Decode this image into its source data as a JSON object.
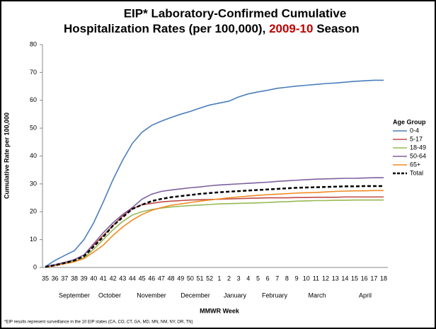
{
  "chart_data": {
    "type": "line",
    "title": {
      "line1": "EIP* Laboratory-Confirmed Cumulative",
      "line2": "Hospitalization Rates (per 100,000),",
      "season": "2009-10",
      "suffix": "Season"
    },
    "x_label": "MMWR Week",
    "y_label": "Cumulative Rate per 100,000",
    "legend_title": "Age Group",
    "legend": "right",
    "grid": false,
    "footnote": "*EIP results represent surveillance in the 10 EIP states (CA, CO, CT, GA, MD, MN, NM, NY, OR, TN)",
    "months": [
      "September",
      "October",
      "November",
      "December",
      "January",
      "February",
      "March",
      "April"
    ],
    "categories": [
      "35",
      "36",
      "37",
      "38",
      "39",
      "40",
      "41",
      "42",
      "43",
      "44",
      "45",
      "46",
      "47",
      "48",
      "49",
      "50",
      "51",
      "52",
      "1",
      "2",
      "3",
      "4",
      "5",
      "6",
      "7",
      "8",
      "9",
      "10",
      "11",
      "12",
      "13",
      "14",
      "15",
      "16",
      "17",
      "18"
    ],
    "ylim": [
      0,
      80
    ],
    "yticks": [
      0,
      10,
      20,
      30,
      40,
      50,
      60,
      70,
      80
    ],
    "series": [
      {
        "name": "0-4",
        "color": "#4a7ebb",
        "values": [
          0.3,
          2.5,
          4.3,
          6,
          10,
          16,
          23.5,
          31.5,
          38.5,
          44.5,
          48.5,
          51,
          52.5,
          53.8,
          55,
          56,
          57.2,
          58.3,
          59,
          59.7,
          61.2,
          62.3,
          63,
          63.6,
          64.3,
          64.7,
          65.1,
          65.4,
          65.7,
          66,
          66.2,
          66.5,
          66.8,
          67,
          67.2,
          67.2
        ]
      },
      {
        "name": "5-17",
        "color": "#be4b48",
        "values": [
          0.3,
          1,
          1.8,
          2.8,
          4.5,
          8,
          11.5,
          15,
          18.5,
          21,
          22.5,
          23,
          23.5,
          23.8,
          24,
          24.2,
          24.3,
          24.4,
          24.5,
          24.6,
          24.7,
          24.8,
          24.9,
          25,
          25,
          25,
          25.1,
          25.1,
          25.2,
          25.2,
          25.2,
          25.3,
          25.3,
          25.3,
          25.3,
          25.3
        ]
      },
      {
        "name": "18-49",
        "color": "#98b954",
        "values": [
          0.2,
          0.8,
          1.5,
          2.3,
          3.5,
          6.5,
          10,
          13.5,
          16.5,
          18.8,
          20,
          20.8,
          21.3,
          21.7,
          22,
          22.2,
          22.4,
          22.6,
          22.8,
          22.9,
          23,
          23.1,
          23.2,
          23.3,
          23.5,
          23.6,
          23.8,
          23.9,
          24,
          24,
          24.1,
          24.1,
          24.2,
          24.2,
          24.2,
          24.2
        ]
      },
      {
        "name": "50-64",
        "color": "#7d60a0",
        "values": [
          0.3,
          1,
          1.8,
          2.8,
          4.5,
          8.5,
          12.5,
          16,
          19,
          21.5,
          24.5,
          26.3,
          27.3,
          27.8,
          28.2,
          28.6,
          28.9,
          29.3,
          29.6,
          29.8,
          30,
          30.2,
          30.4,
          30.6,
          30.9,
          31.1,
          31.3,
          31.5,
          31.7,
          31.8,
          31.9,
          32,
          32,
          32.1,
          32.2,
          32.2
        ]
      },
      {
        "name": "65+",
        "color": "#f08a24",
        "values": [
          0.1,
          0.6,
          1.3,
          2,
          3.2,
          5.5,
          8,
          11.5,
          14.5,
          17,
          19,
          20.5,
          21.5,
          22.3,
          22.8,
          23.3,
          23.8,
          24.2,
          24.6,
          25,
          25.3,
          25.6,
          25.9,
          26.1,
          26.3,
          26.5,
          26.7,
          26.8,
          26.9,
          27.1,
          27.3,
          27.4,
          27.5,
          27.5,
          27.6,
          27.6
        ]
      },
      {
        "name": "Total",
        "color": "#000000",
        "dashed": true,
        "values": [
          0.2,
          0.8,
          1.6,
          2.5,
          4,
          7.5,
          11,
          15,
          18,
          21,
          22.5,
          23.8,
          24.6,
          25.2,
          25.6,
          26,
          26.4,
          26.7,
          27,
          27.2,
          27.4,
          27.6,
          27.8,
          28,
          28.2,
          28.4,
          28.6,
          28.7,
          28.8,
          28.9,
          29,
          29.1,
          29.1,
          29.2,
          29.2,
          29.2
        ]
      }
    ]
  }
}
